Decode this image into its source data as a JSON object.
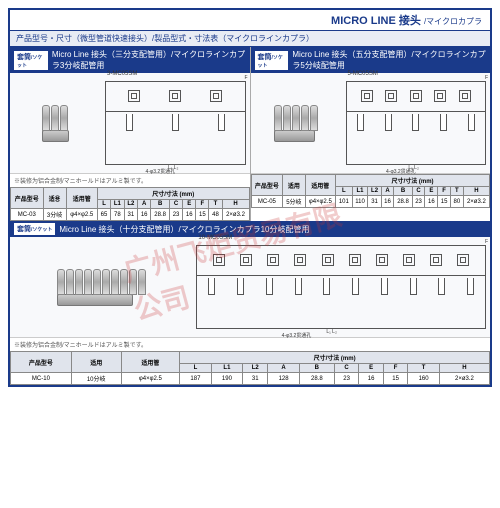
{
  "header": {
    "title": "MICRO LINE 接头",
    "sub": "/マイクロカプラ"
  },
  "subheader": "产品型号・尺寸（微型管道快速接头）/製品型式・寸法表（マイクロラインカプラ）",
  "watermark": "广州飞炬贸易有限公司",
  "panels": [
    {
      "tag": "套筒",
      "tagSub": "/ソケット",
      "title": "Micro Line 接头（三分支配管用）/マイクロラインカプラ3分岐配管用",
      "pins": 3,
      "schLabel": "3-MC05SM",
      "note": "※装修为铝合金制/マニホールドはアルミ製です。",
      "tableHeaders": [
        "产品型号",
        "适용",
        "适用管",
        "L",
        "L1",
        "L2",
        "A",
        "B",
        "C",
        "E",
        "F",
        "T",
        "H"
      ],
      "tableUnit": "尺寸/寸法 (mm)",
      "rows": [
        [
          "MC-03",
          "3分岐",
          "φ4×φ2.5",
          "65",
          "78",
          "31",
          "16",
          "28.8",
          "23",
          "16",
          "15",
          "48",
          "2×ø3.2"
        ]
      ]
    },
    {
      "tag": "套筒",
      "tagSub": "/ソケット",
      "title": "Micro Line 接头（五分支配管用）/マイクロラインカプラ5分岐配管用",
      "pins": 5,
      "schLabel": "5-MC05SM",
      "note": "",
      "tableHeaders": [
        "产品型号",
        "适用",
        "适用管",
        "L",
        "L1",
        "L2",
        "A",
        "B",
        "C",
        "E",
        "F",
        "T",
        "H"
      ],
      "tableUnit": "尺寸/寸法 (mm)",
      "rows": [
        [
          "MC-05",
          "5分岐",
          "φ4×φ2.5",
          "101",
          "110",
          "31",
          "16",
          "28.8",
          "23",
          "16",
          "15",
          "80",
          "2×ø3.2"
        ]
      ]
    }
  ],
  "bottomPanel": {
    "tag": "套筒",
    "tagSub": "/ソケット",
    "title": "Micro Line 接头（十分支配管用）/マイクロラインカプラ10分岐配管用",
    "pins": 10,
    "schLabel": "10-MC05SM",
    "note": "※装修为铝合金制/マニホールドはアルミ製です。",
    "tableHeaders": [
      "产品型号",
      "适用",
      "适用管",
      "L",
      "L1",
      "L2",
      "A",
      "B",
      "C",
      "E",
      "F",
      "T",
      "H"
    ],
    "tableUnit": "尺寸/寸法 (mm)",
    "rows": [
      [
        "MC-10",
        "10分岐",
        "φ4×φ2.5",
        "187",
        "190",
        "31",
        "128",
        "28.8",
        "23",
        "16",
        "15",
        "160",
        "2×ø3.2"
      ]
    ]
  }
}
